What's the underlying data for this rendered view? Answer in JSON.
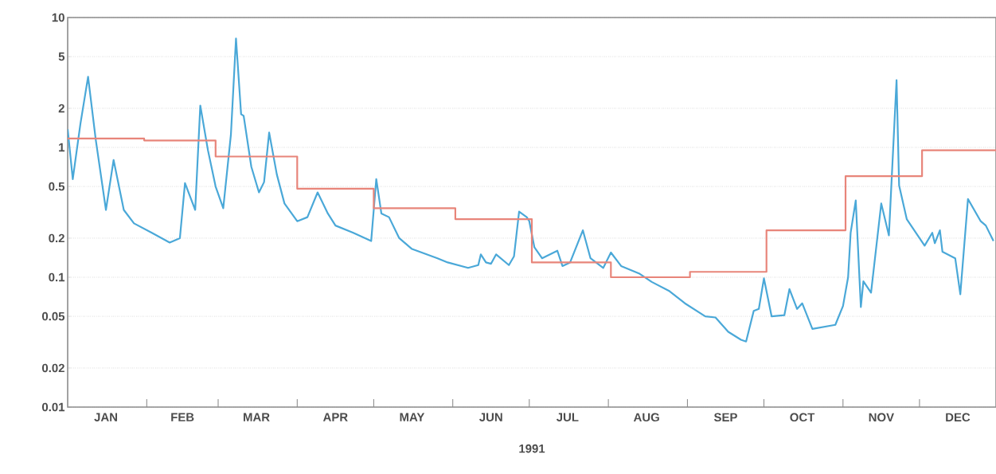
{
  "chart_data": {
    "type": "line",
    "xlabel": "1991",
    "log": "y",
    "grid": "y",
    "line_style": "solid",
    "marker": "none",
    "xlim": [
      "1991-01-01",
      "1991-12-31"
    ],
    "xticks": [
      {
        "value": "1991-01-16",
        "label": "JAN"
      },
      {
        "value": "1991-02-01",
        "label": null
      },
      {
        "value": "1991-02-15",
        "label": "FEB"
      },
      {
        "value": "1991-03-01",
        "label": null
      },
      {
        "value": "1991-03-16",
        "label": "MAR"
      },
      {
        "value": "1991-04-01",
        "label": null
      },
      {
        "value": "1991-04-16",
        "label": "APR"
      },
      {
        "value": "1991-05-01",
        "label": null
      },
      {
        "value": "1991-05-16",
        "label": "MAY"
      },
      {
        "value": "1991-06-01",
        "label": null
      },
      {
        "value": "1991-06-16",
        "label": "JUN"
      },
      {
        "value": "1991-07-01",
        "label": null
      },
      {
        "value": "1991-07-16",
        "label": "JUL"
      },
      {
        "value": "1991-08-01",
        "label": null
      },
      {
        "value": "1991-08-16",
        "label": "AUG"
      },
      {
        "value": "1991-09-01",
        "label": null
      },
      {
        "value": "1991-09-16",
        "label": "SEP"
      },
      {
        "value": "1991-10-01",
        "label": null
      },
      {
        "value": "1991-10-16",
        "label": "OCT"
      },
      {
        "value": "1991-11-01",
        "label": null
      },
      {
        "value": "1991-11-16",
        "label": "NOV"
      },
      {
        "value": "1991-12-01",
        "label": null
      },
      {
        "value": "1991-12-16",
        "label": "DEC"
      }
    ],
    "ylim": [
      0.01,
      10
    ],
    "yticks": [
      0.01,
      0.02,
      0.05,
      0.1,
      0.2,
      0.5,
      1,
      2,
      5,
      10
    ],
    "series": [
      {
        "color": "#4aa8d8",
        "x": [
          "1991-01-01",
          "1991-01-03",
          "1991-01-06",
          "1991-01-09",
          "1991-01-12",
          "1991-01-16",
          "1991-01-19",
          "1991-01-23",
          "1991-01-27",
          "1991-02-03",
          "1991-02-10",
          "1991-02-14",
          "1991-02-16",
          "1991-02-20",
          "1991-02-22",
          "1991-02-25",
          "1991-02-28",
          "1991-03-03",
          "1991-03-06",
          "1991-03-08",
          "1991-03-10",
          "1991-03-11",
          "1991-03-14",
          "1991-03-17",
          "1991-03-19",
          "1991-03-21",
          "1991-03-24",
          "1991-03-27",
          "1991-04-01",
          "1991-04-05",
          "1991-04-09",
          "1991-04-13",
          "1991-04-16",
          "1991-04-23",
          "1991-04-30",
          "1991-05-02",
          "1991-05-04",
          "1991-05-07",
          "1991-05-11",
          "1991-05-16",
          "1991-05-26",
          "1991-05-30",
          "1991-06-07",
          "1991-06-11",
          "1991-06-12",
          "1991-06-14",
          "1991-06-16",
          "1991-06-18",
          "1991-06-23",
          "1991-06-25",
          "1991-06-27",
          "1991-06-30",
          "1991-07-01",
          "1991-07-03",
          "1991-07-06",
          "1991-07-12",
          "1991-07-14",
          "1991-07-17",
          "1991-07-22",
          "1991-07-25",
          "1991-07-30",
          "1991-08-02",
          "1991-08-06",
          "1991-08-13",
          "1991-08-18",
          "1991-08-25",
          "1991-08-31",
          "1991-09-08",
          "1991-09-12",
          "1991-09-17",
          "1991-09-22",
          "1991-09-24",
          "1991-09-27",
          "1991-09-29",
          "1991-10-01",
          "1991-10-04",
          "1991-10-09",
          "1991-10-11",
          "1991-10-14",
          "1991-10-16",
          "1991-10-20",
          "1991-10-29",
          "1991-11-01",
          "1991-11-03",
          "1991-11-04",
          "1991-11-06",
          "1991-11-08",
          "1991-11-09",
          "1991-11-12",
          "1991-11-16",
          "1991-11-19",
          "1991-11-22",
          "1991-11-23",
          "1991-11-26",
          "1991-12-03",
          "1991-12-06",
          "1991-12-07",
          "1991-12-09",
          "1991-12-10",
          "1991-12-15",
          "1991-12-17",
          "1991-12-20",
          "1991-12-25",
          "1991-12-27",
          "1991-12-30"
        ],
        "values": [
          1.38,
          0.57,
          1.52,
          3.5,
          1.15,
          0.33,
          0.8,
          0.33,
          0.26,
          0.22,
          0.185,
          0.2,
          0.53,
          0.33,
          2.1,
          0.95,
          0.5,
          0.34,
          1.25,
          6.9,
          1.8,
          1.75,
          0.71,
          0.45,
          0.54,
          1.3,
          0.62,
          0.37,
          0.27,
          0.29,
          0.45,
          0.31,
          0.25,
          0.22,
          0.19,
          0.57,
          0.31,
          0.29,
          0.2,
          0.165,
          0.14,
          0.13,
          0.118,
          0.124,
          0.15,
          0.13,
          0.127,
          0.15,
          0.124,
          0.145,
          0.32,
          0.29,
          0.27,
          0.17,
          0.14,
          0.16,
          0.122,
          0.13,
          0.23,
          0.14,
          0.118,
          0.155,
          0.122,
          0.107,
          0.092,
          0.078,
          0.063,
          0.05,
          0.049,
          0.038,
          0.033,
          0.032,
          0.055,
          0.057,
          0.098,
          0.05,
          0.051,
          0.081,
          0.057,
          0.063,
          0.04,
          0.043,
          0.06,
          0.1,
          0.22,
          0.39,
          0.059,
          0.093,
          0.076,
          0.37,
          0.21,
          3.3,
          0.51,
          0.28,
          0.175,
          0.22,
          0.183,
          0.23,
          0.157,
          0.14,
          0.074,
          0.4,
          0.27,
          0.25,
          0.19
        ]
      },
      {
        "type": "step",
        "color": "#e8857a",
        "x": [
          "1991-01-01",
          "1991-01-31",
          "1991-02-28",
          "1991-04-01",
          "1991-05-01",
          "1991-06-02",
          "1991-07-02",
          "1991-08-02",
          "1991-09-02",
          "1991-10-02",
          "1991-11-02",
          "1991-12-02",
          "1991-12-31"
        ],
        "values": [
          1.17,
          1.13,
          0.85,
          0.48,
          0.34,
          0.28,
          0.13,
          0.1,
          0.11,
          0.23,
          0.6,
          0.95,
          0.95
        ]
      }
    ]
  }
}
